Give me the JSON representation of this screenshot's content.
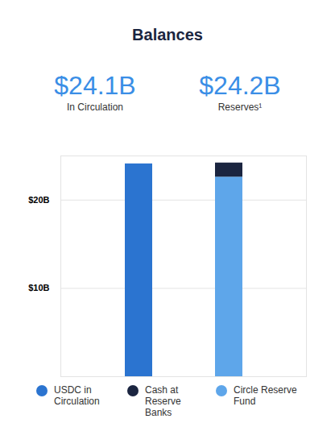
{
  "chart_data": {
    "type": "bar",
    "title": "Balances",
    "headlines": [
      {
        "text": "$24.1B",
        "caption": "In Circulation"
      },
      {
        "text": "$24.2B",
        "caption": "Reserves¹"
      }
    ],
    "categories": [
      null,
      null
    ],
    "series": [
      {
        "name": "USDC in Circulation",
        "color": "#2b74d0",
        "values": [
          24.1,
          null
        ]
      },
      {
        "name": "Cash at Reserve Banks",
        "color": "#1b2540",
        "values": [
          null,
          1.6
        ]
      },
      {
        "name": "Circle Reserve Fund",
        "color": "#5ea6ea",
        "values": [
          null,
          22.6
        ]
      }
    ],
    "stacked": true,
    "ylim": [
      0,
      25
    ],
    "yticks": [
      {
        "value": 10,
        "label": "$10B"
      },
      {
        "value": 20,
        "label": "$20B"
      }
    ],
    "grid": true,
    "legend": "bottom"
  }
}
